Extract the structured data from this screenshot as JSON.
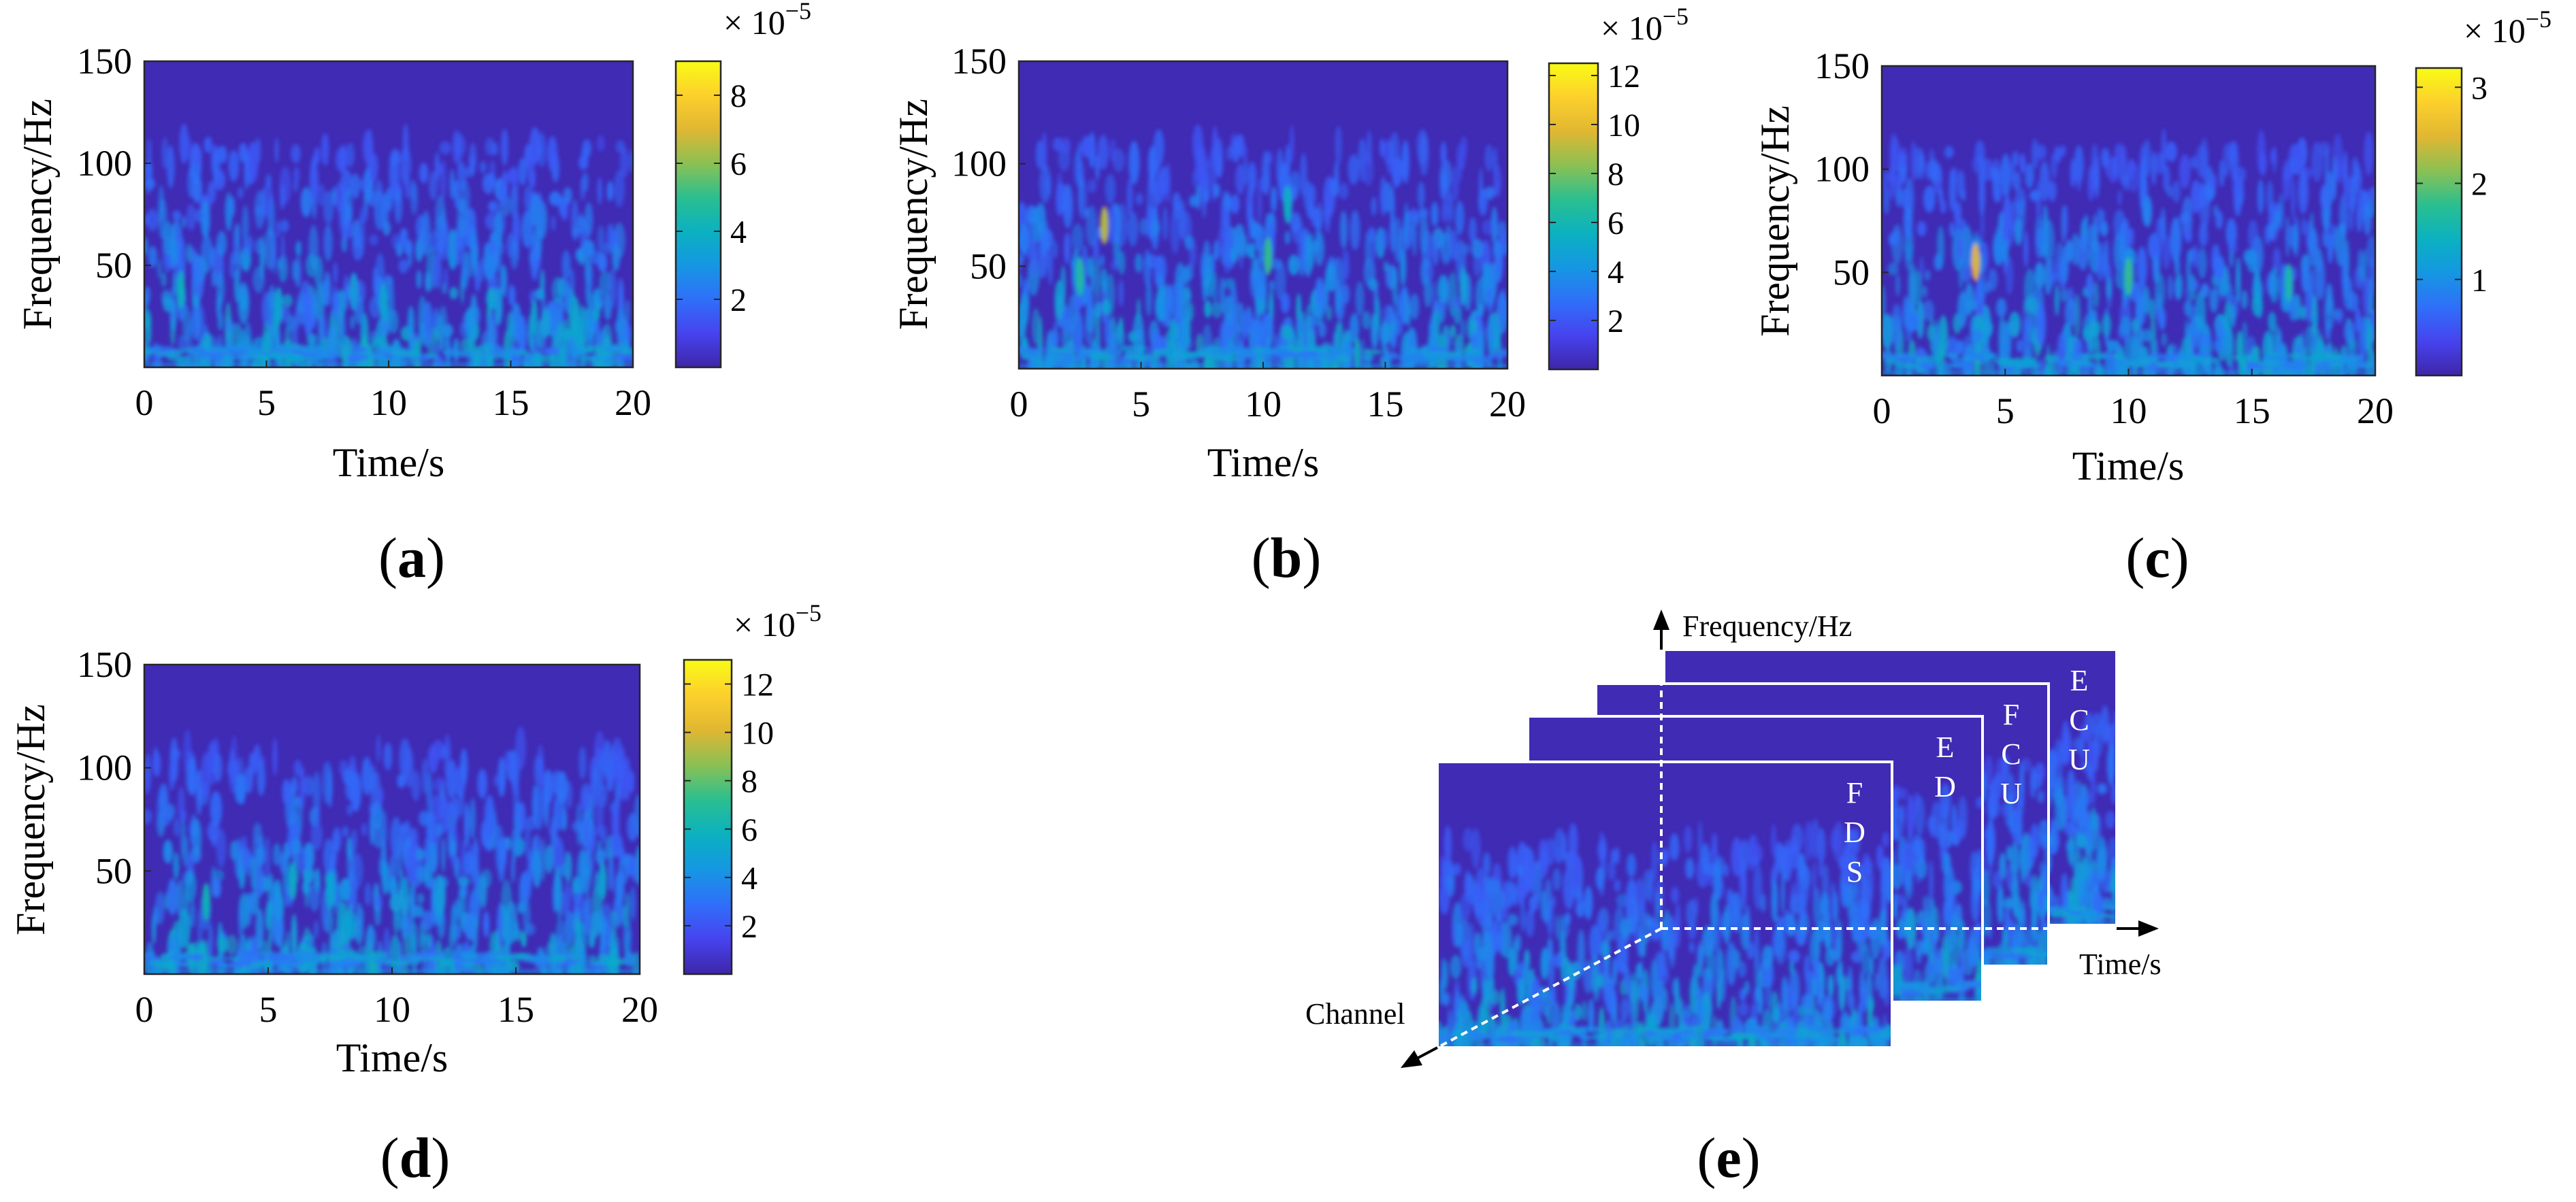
{
  "figure": {
    "colormap": [
      "#3e26a8",
      "#4743ef",
      "#2f6ff9",
      "#1597e2",
      "#0bb1c0",
      "#2bbf8f",
      "#8cc053",
      "#e1b732",
      "#fcd02c",
      "#f9fb15"
    ]
  },
  "chart_data": [
    {
      "id": "a",
      "type": "heatmap",
      "panel_label": "a",
      "xlabel": "Time/s",
      "ylabel": "Frequency/Hz",
      "xlim": [
        0,
        20
      ],
      "ylim": [
        0,
        150
      ],
      "xticks": [
        0,
        5,
        10,
        15,
        20
      ],
      "yticks": [
        50,
        100,
        150
      ],
      "colorbar": {
        "scale_label": "× 10",
        "scale_exp": "−5",
        "range": [
          0,
          9
        ],
        "ticks": [
          2,
          4,
          6,
          8
        ]
      },
      "hotspots": [
        {
          "t": 1.5,
          "f": 38,
          "v": 4.0
        },
        {
          "t": 5.5,
          "f": 30,
          "v": 3.5
        },
        {
          "t": 9.8,
          "f": 32,
          "v": 3.5
        },
        {
          "t": 14.5,
          "f": 30,
          "v": 3.0
        }
      ]
    },
    {
      "id": "b",
      "type": "heatmap",
      "panel_label": "b",
      "xlabel": "Time/s",
      "ylabel": "Frequency/Hz",
      "xlim": [
        0,
        20
      ],
      "ylim": [
        0,
        150
      ],
      "xticks": [
        0,
        5,
        10,
        15,
        20
      ],
      "yticks": [
        50,
        100,
        150
      ],
      "colorbar": {
        "scale_label": "× 10",
        "scale_exp": "−5",
        "range": [
          0,
          12.5
        ],
        "ticks": [
          2,
          4,
          6,
          8,
          10,
          12
        ]
      },
      "hotspots": [
        {
          "t": 3.5,
          "f": 70,
          "v": 9.0
        },
        {
          "t": 2.5,
          "f": 45,
          "v": 6.5
        },
        {
          "t": 10.2,
          "f": 55,
          "v": 7.0
        },
        {
          "t": 11.0,
          "f": 80,
          "v": 5.5
        },
        {
          "t": 18.2,
          "f": 40,
          "v": 4.5
        }
      ]
    },
    {
      "id": "c",
      "type": "heatmap",
      "panel_label": "c",
      "xlabel": "Time/s",
      "ylabel": "Frequency/Hz",
      "xlim": [
        0,
        20
      ],
      "ylim": [
        0,
        150
      ],
      "xticks": [
        0,
        5,
        10,
        15,
        20
      ],
      "yticks": [
        50,
        100,
        150
      ],
      "colorbar": {
        "scale_label": "× 10",
        "scale_exp": "−5",
        "range": [
          0,
          3.2
        ],
        "ticks": [
          1,
          2,
          3
        ]
      },
      "hotspots": [
        {
          "t": 3.8,
          "f": 55,
          "v": 2.5
        },
        {
          "t": 10.0,
          "f": 48,
          "v": 1.8
        },
        {
          "t": 16.5,
          "f": 45,
          "v": 1.6
        }
      ]
    },
    {
      "id": "d",
      "type": "heatmap",
      "panel_label": "d",
      "xlabel": "Time/s",
      "ylabel": "Frequency/Hz",
      "xlim": [
        0,
        20
      ],
      "ylim": [
        0,
        150
      ],
      "xticks": [
        0,
        5,
        10,
        15,
        20
      ],
      "yticks": [
        50,
        100,
        150
      ],
      "colorbar": {
        "scale_label": "× 10",
        "scale_exp": "−5",
        "range": [
          0,
          13
        ],
        "ticks": [
          2,
          4,
          6,
          8,
          10,
          12
        ]
      },
      "hotspots": [
        {
          "t": 2.5,
          "f": 35,
          "v": 6.0
        },
        {
          "t": 6.0,
          "f": 45,
          "v": 5.5
        },
        {
          "t": 7.5,
          "f": 40,
          "v": 5.0
        },
        {
          "t": 12.0,
          "f": 38,
          "v": 4.5
        },
        {
          "t": 18.5,
          "f": 45,
          "v": 5.0
        }
      ]
    }
  ],
  "stack_diagram": {
    "panel_label": "e",
    "axis_labels": {
      "frequency": "Frequency/Hz",
      "time": "Time/s",
      "channel": "Channel"
    },
    "layers": [
      {
        "id": "ECU",
        "letters": [
          "E",
          "C",
          "U"
        ]
      },
      {
        "id": "FCU",
        "letters": [
          "F",
          "C",
          "U"
        ]
      },
      {
        "id": "ED",
        "letters": [
          "E",
          "D"
        ]
      },
      {
        "id": "FDS",
        "letters": [
          "F",
          "D",
          "S"
        ]
      }
    ]
  }
}
